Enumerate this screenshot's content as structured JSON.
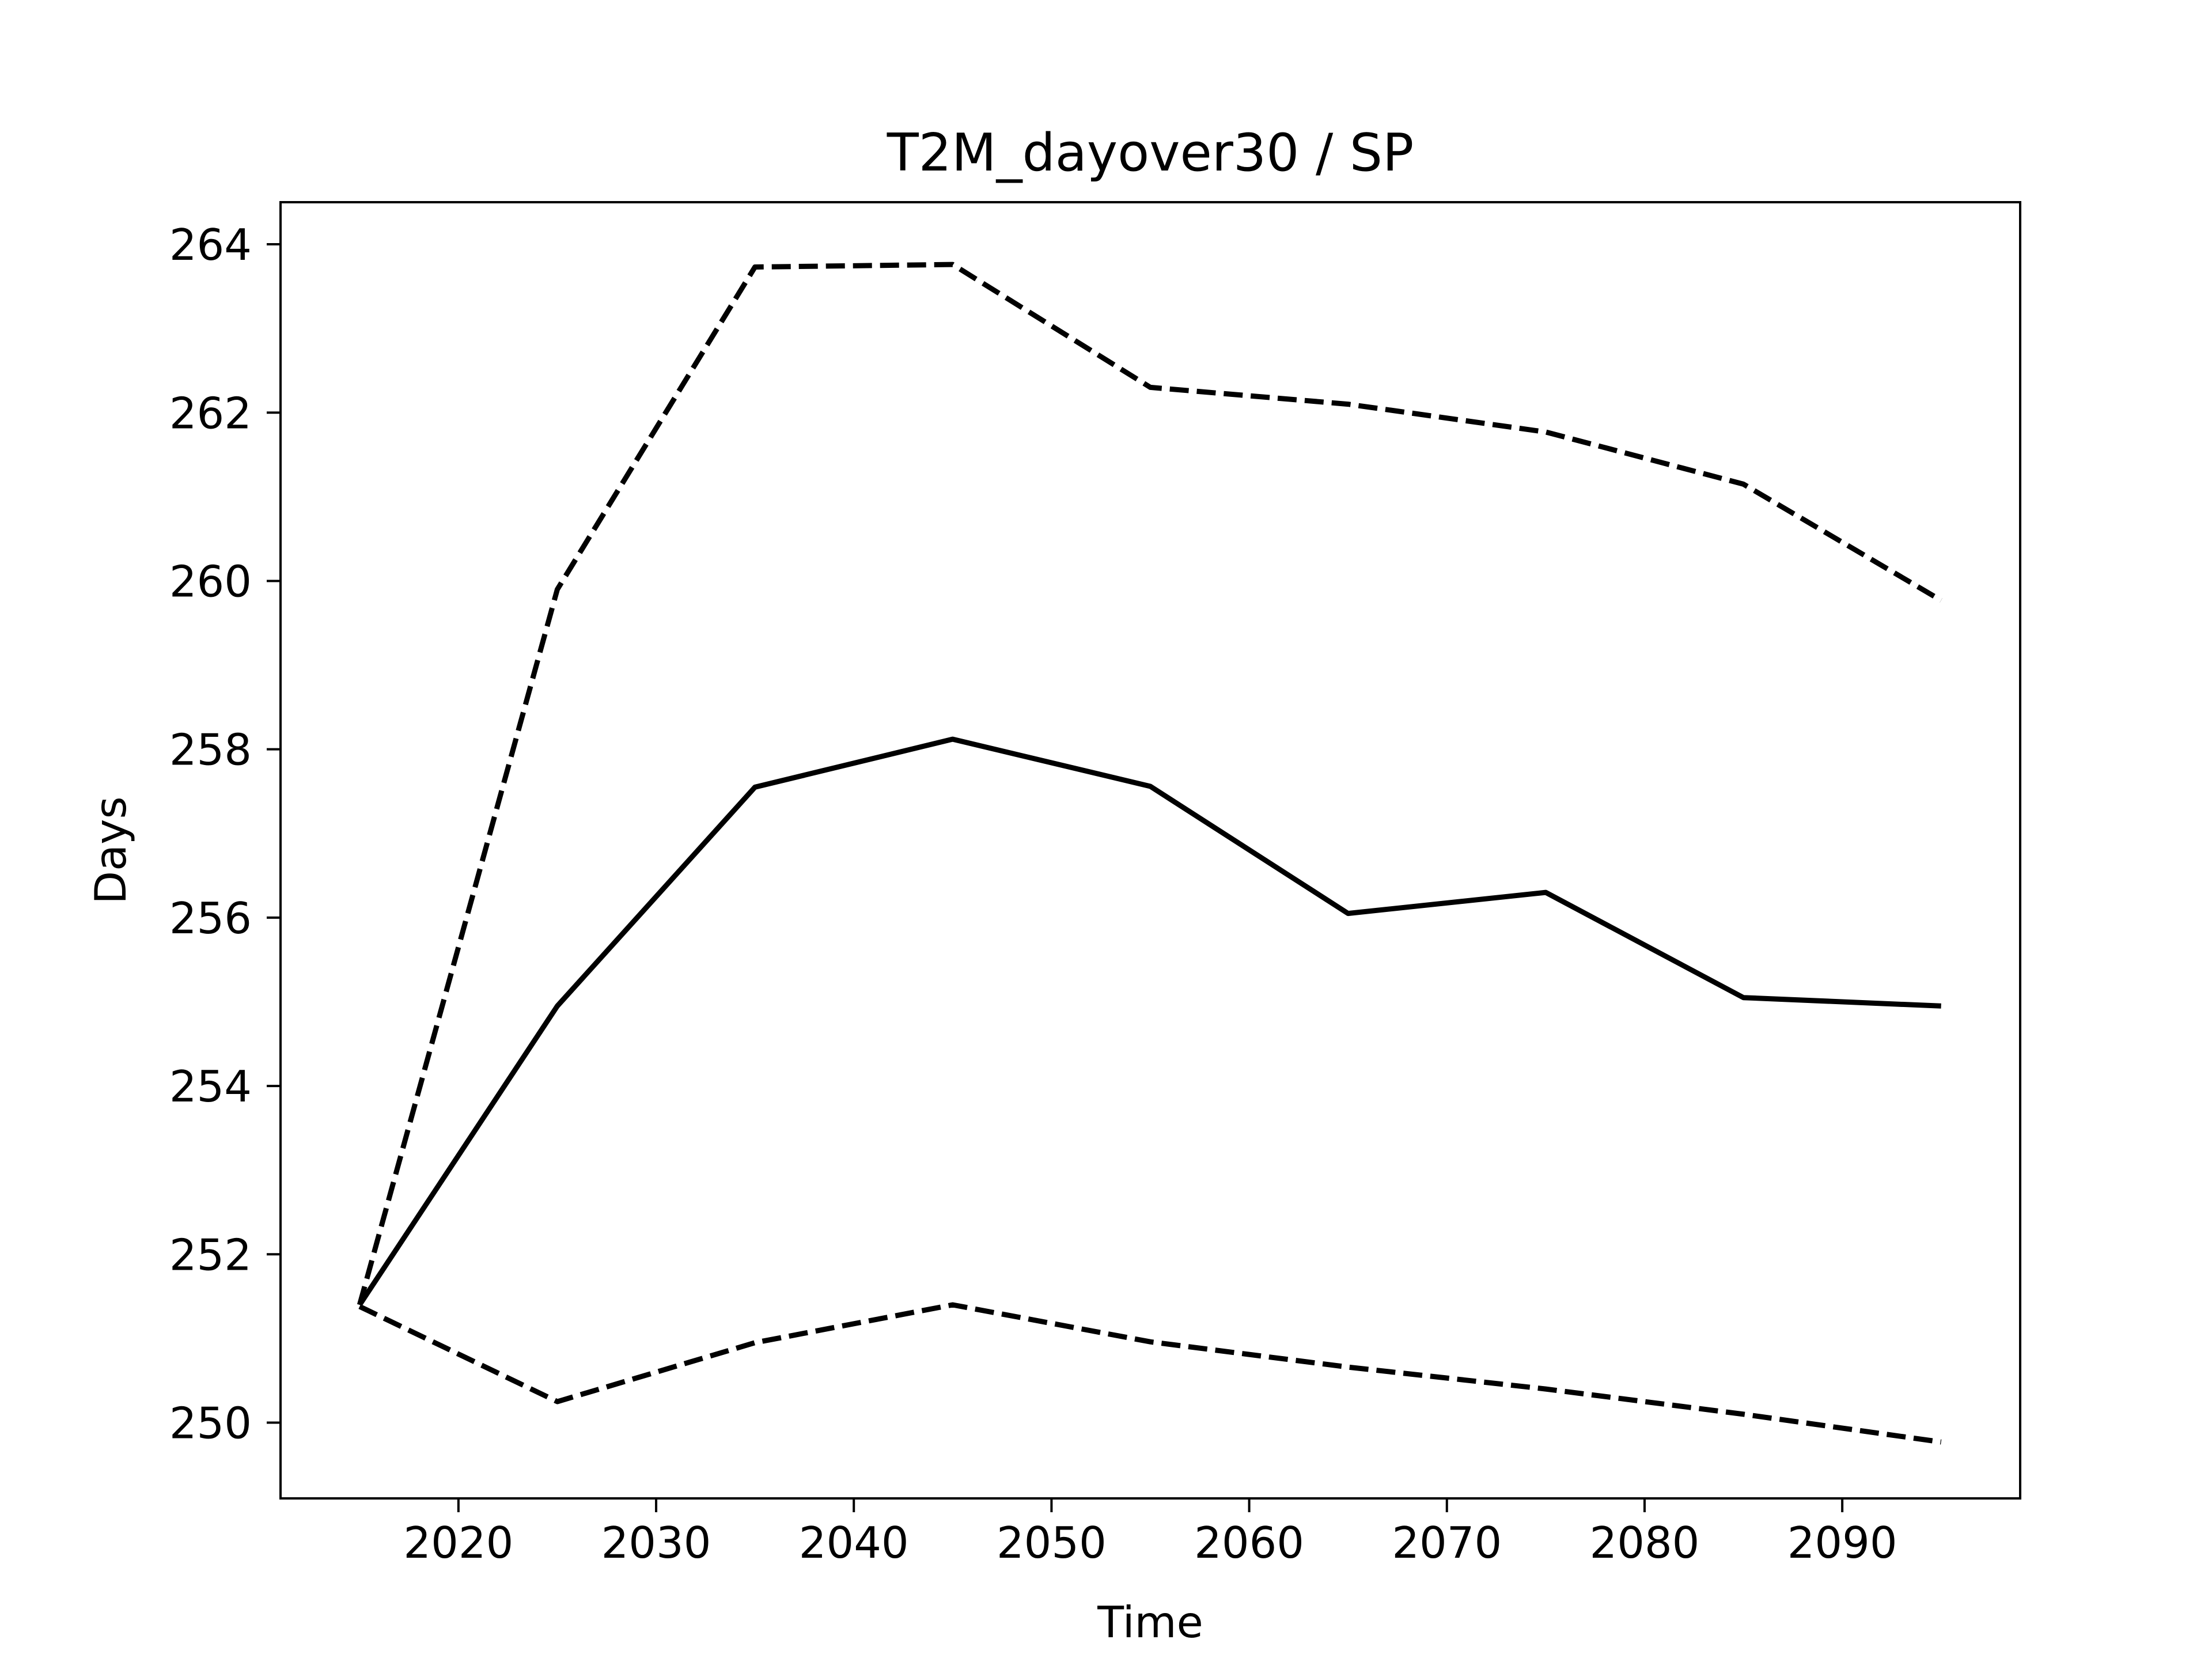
{
  "chart_data": {
    "type": "line",
    "title": "T2M_dayover30 / SP",
    "xlabel": "Time",
    "ylabel": "Days",
    "xlim": [
      2011,
      2099
    ],
    "ylim": [
      249.1,
      264.5
    ],
    "xticks": [
      2020,
      2030,
      2040,
      2050,
      2060,
      2070,
      2080,
      2090
    ],
    "yticks": [
      250,
      252,
      254,
      256,
      258,
      260,
      262,
      264
    ],
    "grid": false,
    "x": [
      2015,
      2025,
      2035,
      2045,
      2055,
      2065,
      2075,
      2085,
      2095
    ],
    "series": [
      {
        "style": "solid",
        "color": "#000000",
        "values": [
          251.4,
          254.95,
          257.55,
          258.12,
          257.56,
          256.05,
          256.3,
          255.05,
          254.95
        ]
      },
      {
        "style": "dashed",
        "color": "#000000",
        "values": [
          251.4,
          259.9,
          263.73,
          263.76,
          262.3,
          262.1,
          261.77,
          261.15,
          259.77
        ]
      },
      {
        "style": "dashed",
        "color": "#000000",
        "values": [
          251.38,
          250.25,
          250.95,
          251.4,
          250.96,
          250.66,
          250.4,
          250.1,
          249.77
        ]
      }
    ]
  }
}
